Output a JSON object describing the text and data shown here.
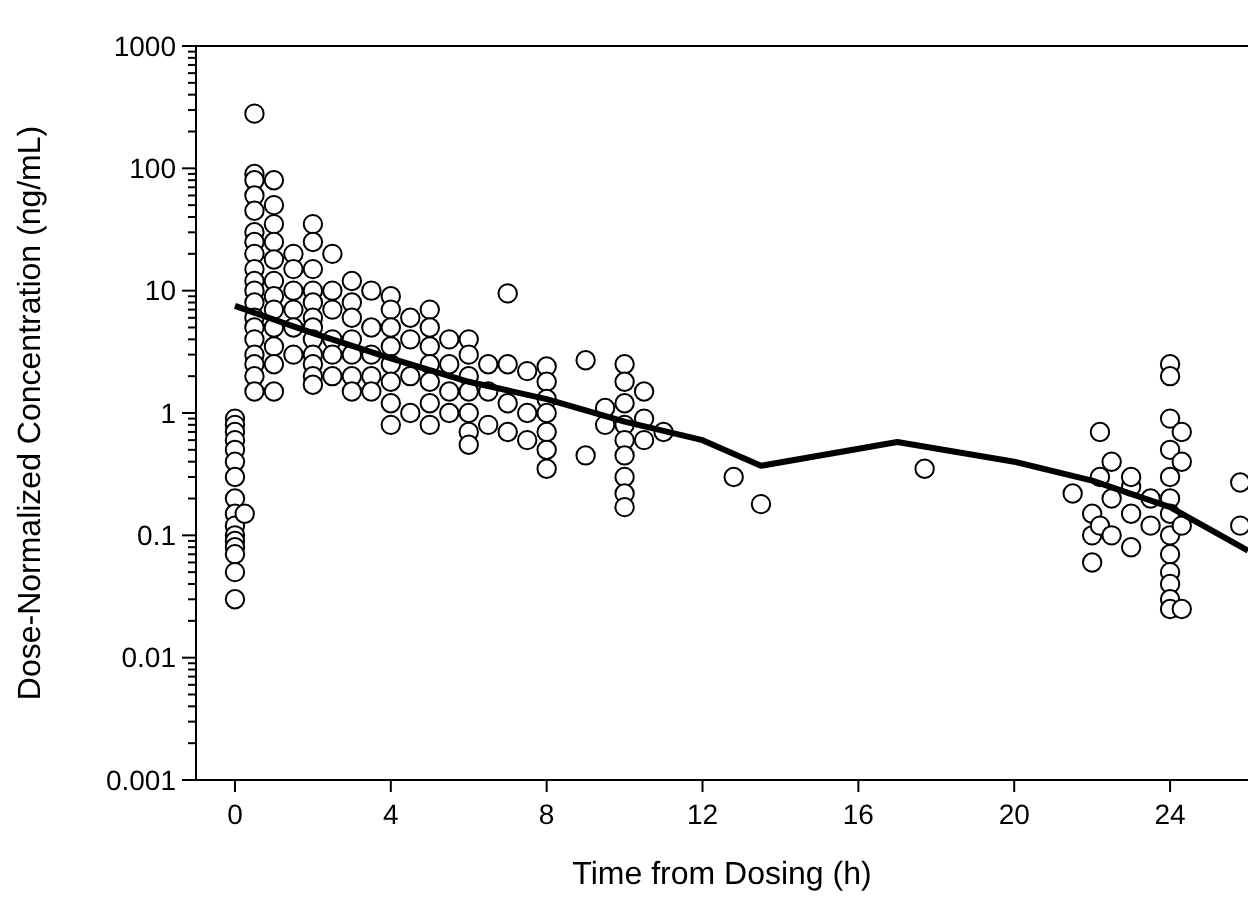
{
  "chart_data": {
    "type": "scatter",
    "xlabel": "Time from Dosing (h)",
    "ylabel": "Dose-Normalized Concentration (ng/mL)",
    "log": "y",
    "grid": false,
    "marker": "circle",
    "xlim": [
      -1,
      26
    ],
    "xticks": [
      0,
      4,
      8,
      12,
      16,
      20,
      24
    ],
    "ylim": [
      0.001,
      1000
    ],
    "yticks": [
      0.001,
      {
        "value": 0.002,
        "label": null
      },
      {
        "value": 0.003,
        "label": null
      },
      {
        "value": 0.004,
        "label": null
      },
      {
        "value": 0.005,
        "label": null
      },
      {
        "value": 0.006,
        "label": null
      },
      {
        "value": 0.007,
        "label": null
      },
      {
        "value": 0.008,
        "label": null
      },
      {
        "value": 0.009,
        "label": null
      },
      0.01,
      {
        "value": 0.02,
        "label": null
      },
      {
        "value": 0.03,
        "label": null
      },
      {
        "value": 0.04,
        "label": null
      },
      {
        "value": 0.05,
        "label": null
      },
      {
        "value": 0.06,
        "label": null
      },
      {
        "value": 0.07,
        "label": null
      },
      {
        "value": 0.08,
        "label": null
      },
      {
        "value": 0.09,
        "label": null
      },
      0.1,
      {
        "value": 0.2,
        "label": null
      },
      {
        "value": 0.3,
        "label": null
      },
      {
        "value": 0.4,
        "label": null
      },
      {
        "value": 0.5,
        "label": null
      },
      {
        "value": 0.6,
        "label": null
      },
      {
        "value": 0.7,
        "label": null
      },
      {
        "value": 0.8,
        "label": null
      },
      {
        "value": 0.9,
        "label": null
      },
      1,
      {
        "value": 2,
        "label": null
      },
      {
        "value": 3,
        "label": null
      },
      {
        "value": 4,
        "label": null
      },
      {
        "value": 5,
        "label": null
      },
      {
        "value": 6,
        "label": null
      },
      {
        "value": 7,
        "label": null
      },
      {
        "value": 8,
        "label": null
      },
      {
        "value": 9,
        "label": null
      },
      10,
      {
        "value": 20,
        "label": null
      },
      {
        "value": 30,
        "label": null
      },
      {
        "value": 40,
        "label": null
      },
      {
        "value": 50,
        "label": null
      },
      {
        "value": 60,
        "label": null
      },
      {
        "value": 70,
        "label": null
      },
      {
        "value": 80,
        "label": null
      },
      {
        "value": 90,
        "label": null
      },
      100,
      {
        "value": 200,
        "label": null
      },
      {
        "value": 300,
        "label": null
      },
      {
        "value": 400,
        "label": null
      },
      {
        "value": 500,
        "label": null
      },
      {
        "value": 600,
        "label": null
      },
      {
        "value": 700,
        "label": null
      },
      {
        "value": 800,
        "label": null
      },
      {
        "value": 900,
        "label": null
      },
      1000
    ],
    "series": [
      {
        "color": "#000000",
        "x": [
          0,
          0,
          0,
          0,
          0,
          0,
          0,
          0,
          0,
          0,
          0,
          0,
          0,
          0,
          0,
          0,
          0.25,
          0.5,
          0.5,
          0.5,
          0.5,
          0.5,
          0.5,
          0.5,
          0.5,
          0.5,
          0.5,
          0.5,
          0.5,
          0.5,
          0.5,
          0.5,
          0.5,
          0.5,
          0.5,
          0.5,
          1,
          1,
          1,
          1,
          1,
          1,
          1,
          1,
          1,
          1,
          1,
          1,
          1.5,
          1.5,
          1.5,
          1.5,
          1.5,
          1.5,
          2,
          2,
          2,
          2,
          2,
          2,
          2,
          2,
          2,
          2,
          2,
          2,
          2.5,
          2.5,
          2.5,
          2.5,
          2.5,
          2.5,
          3,
          3,
          3,
          3,
          3,
          3,
          3,
          3.5,
          3.5,
          3.5,
          3.5,
          3.5,
          4,
          4,
          4,
          4,
          4,
          4,
          4,
          4,
          4.5,
          4.5,
          4.5,
          4.5,
          5,
          5,
          5,
          5,
          5,
          5,
          5,
          5.5,
          5.5,
          5.5,
          5.5,
          6,
          6,
          6,
          6,
          6,
          6,
          6,
          6.5,
          6.5,
          6.5,
          7,
          7,
          7,
          7,
          7.5,
          7.5,
          7.5,
          8,
          8,
          8,
          8,
          8,
          8,
          8,
          9,
          9,
          9.5,
          9.5,
          10,
          10,
          10,
          10,
          10,
          10,
          10,
          10,
          10,
          10.5,
          10.5,
          10.5,
          11,
          12.8,
          13.5,
          17.7,
          21.5,
          22,
          22,
          22,
          22.2,
          22.2,
          22.2,
          22.5,
          22.5,
          22.5,
          23,
          23,
          23,
          23,
          23.5,
          23.5,
          24,
          24,
          24,
          24,
          24,
          24,
          24,
          24,
          24,
          24,
          24,
          24,
          24,
          24.3,
          24.3,
          24.3,
          24.3,
          25.8,
          25.8
        ],
        "values": [
          0.9,
          0.8,
          0.7,
          0.6,
          0.5,
          0.4,
          0.3,
          0.2,
          0.15,
          0.12,
          0.1,
          0.09,
          0.08,
          0.07,
          0.05,
          0.03,
          0.15,
          280,
          90,
          80,
          60,
          45,
          30,
          25,
          20,
          15,
          12,
          10,
          8,
          6,
          5,
          4,
          3,
          2.5,
          2,
          1.5,
          80,
          50,
          35,
          25,
          18,
          12,
          9,
          7,
          5,
          3.5,
          2.5,
          1.5,
          20,
          15,
          10,
          7,
          5,
          3,
          35,
          25,
          15,
          10,
          8,
          6,
          5,
          4,
          3,
          2.5,
          2,
          1.7,
          20,
          10,
          7,
          4,
          3,
          2,
          12,
          8,
          6,
          4,
          3,
          2,
          1.5,
          10,
          5,
          3,
          2,
          1.5,
          9,
          7,
          5,
          3.5,
          2.5,
          1.8,
          1.2,
          0.8,
          6,
          4,
          2,
          1,
          7,
          5,
          3.5,
          2.5,
          1.8,
          1.2,
          0.8,
          4,
          2.5,
          1.5,
          1,
          4,
          3,
          2,
          1.5,
          1,
          0.7,
          0.55,
          2.5,
          1.5,
          0.8,
          9.5,
          2.5,
          1.2,
          0.7,
          2.2,
          1,
          0.6,
          2.4,
          1.8,
          1.3,
          1,
          0.7,
          0.5,
          0.35,
          2.7,
          0.45,
          1.1,
          0.8,
          2.5,
          1.8,
          1.2,
          0.8,
          0.6,
          0.45,
          0.3,
          0.22,
          0.17,
          1.5,
          0.9,
          0.6,
          0.7,
          0.3,
          0.18,
          0.35,
          0.22,
          0.1,
          0.06,
          0.15,
          0.7,
          0.3,
          0.12,
          0.2,
          0.4,
          0.1,
          0.25,
          0.15,
          0.08,
          0.3,
          0.12,
          0.2,
          2.5,
          2,
          0.9,
          0.5,
          0.3,
          0.2,
          0.15,
          0.1,
          0.07,
          0.05,
          0.04,
          0.03,
          0.025,
          0.7,
          0.4,
          0.12,
          0.025,
          0.27,
          0.12
        ]
      },
      {
        "type": "line",
        "color": "#000000",
        "marker": "none",
        "x": [
          0,
          2,
          4,
          6,
          8,
          10,
          12,
          13.5,
          17,
          20,
          22,
          24,
          26
        ],
        "values": [
          7.5,
          4.5,
          2.8,
          1.8,
          1.3,
          0.85,
          0.6,
          0.37,
          0.58,
          0.4,
          0.28,
          0.17,
          0.075
        ]
      }
    ]
  }
}
